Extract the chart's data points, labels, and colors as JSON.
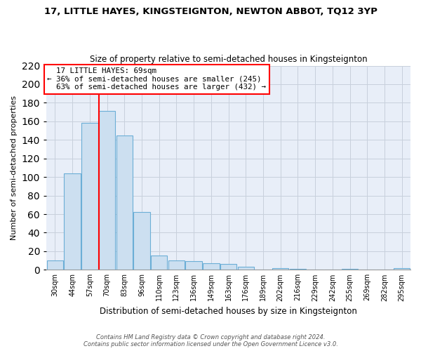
{
  "title": "17, LITTLE HAYES, KINGSTEIGNTON, NEWTON ABBOT, TQ12 3YP",
  "subtitle": "Size of property relative to semi-detached houses in Kingsteignton",
  "xlabel": "Distribution of semi-detached houses by size in Kingsteignton",
  "ylabel": "Number of semi-detached properties",
  "bin_labels": [
    "30sqm",
    "44sqm",
    "57sqm",
    "70sqm",
    "83sqm",
    "96sqm",
    "110sqm",
    "123sqm",
    "136sqm",
    "149sqm",
    "163sqm",
    "176sqm",
    "189sqm",
    "202sqm",
    "216sqm",
    "229sqm",
    "242sqm",
    "255sqm",
    "269sqm",
    "282sqm",
    "295sqm"
  ],
  "bar_values": [
    10,
    104,
    158,
    171,
    145,
    62,
    15,
    10,
    9,
    7,
    6,
    3,
    0,
    2,
    1,
    0,
    0,
    1,
    0,
    0,
    2
  ],
  "bar_color": "#ccdff0",
  "bar_edge_color": "#6baed6",
  "property_sqm": 69,
  "property_label": "17 LITTLE HAYES: 69sqm",
  "pct_smaller": 36,
  "count_smaller": 245,
  "pct_larger": 63,
  "count_larger": 432,
  "annotation_box_edge": "red",
  "line_color": "red",
  "ylim": [
    0,
    220
  ],
  "yticks": [
    0,
    20,
    40,
    60,
    80,
    100,
    120,
    140,
    160,
    180,
    200,
    220
  ],
  "ax_bg_color": "#e8eef8",
  "grid_color": "#c8d0dc",
  "footer1": "Contains HM Land Registry data © Crown copyright and database right 2024.",
  "footer2": "Contains public sector information licensed under the Open Government Licence v3.0."
}
